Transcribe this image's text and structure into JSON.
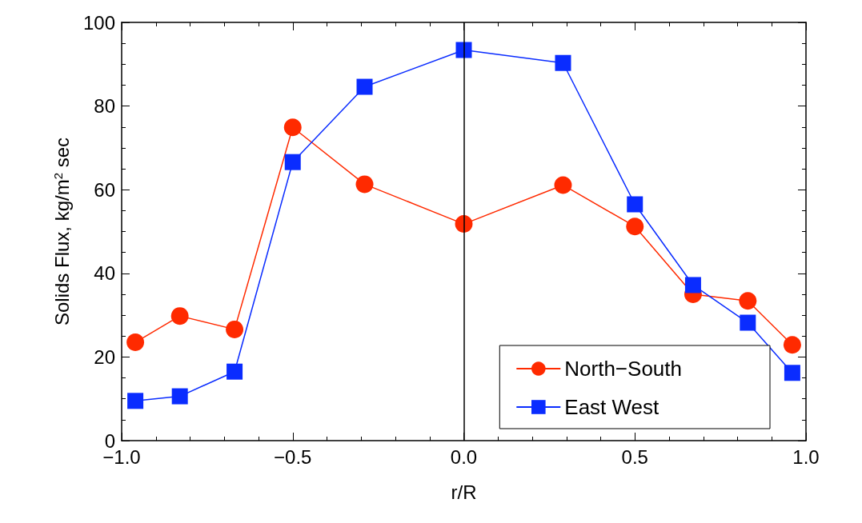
{
  "chart_data": {
    "type": "line",
    "xlabel": "r/R",
    "ylabel": "Solids Flux, kg/m$^{2}$ sec",
    "x": [
      -0.96,
      -0.83,
      -0.67,
      -0.5,
      -0.29,
      0,
      0.29,
      0.5,
      0.67,
      0.83,
      0.96
    ],
    "series": [
      {
        "name": "North−South",
        "color": "#ff2a00",
        "marker": "circle",
        "values": [
          23.5,
          29.8,
          26.6,
          74.9,
          61.3,
          51.8,
          61.1,
          51.2,
          35,
          33.4,
          22.9
        ]
      },
      {
        "name": "East West",
        "color": "#0a2cff",
        "marker": "square",
        "values": [
          9.5,
          10.6,
          16.5,
          66.6,
          84.6,
          93.4,
          90.3,
          56.5,
          37.2,
          28.2,
          16.2
        ]
      }
    ],
    "xlim": [
      -1,
      1
    ],
    "xticks": [
      {
        "value": -1,
        "label": "−1.0"
      },
      {
        "value": -0.5,
        "label": "−0.5"
      },
      {
        "value": 0,
        "label": "0.0"
      },
      {
        "value": 0.5,
        "label": "0.5"
      },
      {
        "value": 1,
        "label": "1.0"
      }
    ],
    "ylim": [
      0,
      100
    ],
    "yticks": [
      0,
      20,
      40,
      60,
      80,
      100
    ],
    "ref_lines": [
      {
        "axis": "x",
        "value": 0,
        "color": "#000000"
      }
    ],
    "legend": "bottom right",
    "grid": false
  }
}
